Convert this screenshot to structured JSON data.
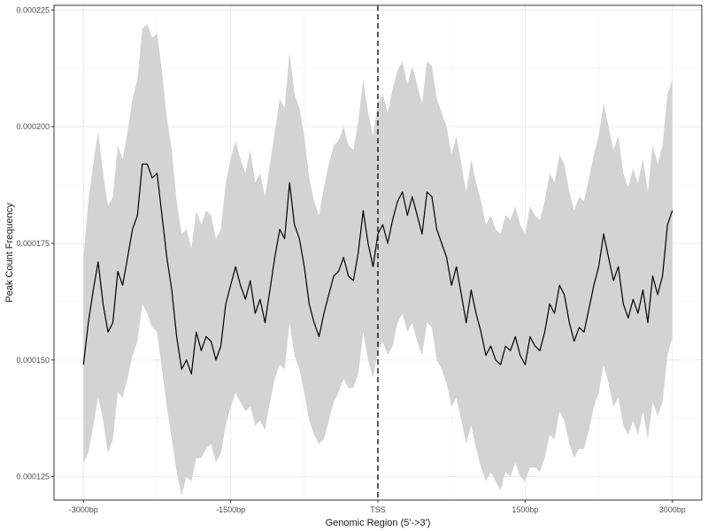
{
  "chart_data": {
    "type": "line",
    "title": "",
    "xlabel": "Genomic Region (5'->3')",
    "ylabel": "Peak Count Frequency",
    "xlim": [
      -3300,
      3300
    ],
    "ylim": [
      0.00012,
      0.000226
    ],
    "x_ticks": [
      {
        "value": -3000,
        "label": "-3000bp"
      },
      {
        "value": -1500,
        "label": "-1500bp"
      },
      {
        "value": 0,
        "label": "TSS"
      },
      {
        "value": 1500,
        "label": "1500bp"
      },
      {
        "value": 3000,
        "label": "3000bp"
      }
    ],
    "y_ticks": [
      {
        "value": 0.000125,
        "label": "0.000125"
      },
      {
        "value": 0.00015,
        "label": "0.000150"
      },
      {
        "value": 0.000175,
        "label": "0.000175"
      },
      {
        "value": 0.0002,
        "label": "0.000200"
      },
      {
        "value": 0.000225,
        "label": "0.000225"
      }
    ],
    "reference_line": {
      "x": 0,
      "style": "dashed"
    },
    "grid": true,
    "colors": {
      "line": "#000000",
      "ribbon": "#d3d3d3",
      "grid": "#ebebeb",
      "border": "#333333"
    },
    "series": [
      {
        "x": [
          -3000,
          -2950,
          -2900,
          -2850,
          -2800,
          -2750,
          -2700,
          -2650,
          -2600,
          -2550,
          -2500,
          -2450,
          -2400,
          -2350,
          -2300,
          -2250,
          -2200,
          -2150,
          -2100,
          -2050,
          -2000,
          -1950,
          -1900,
          -1850,
          -1800,
          -1750,
          -1700,
          -1650,
          -1600,
          -1550,
          -1500,
          -1450,
          -1400,
          -1350,
          -1300,
          -1250,
          -1200,
          -1150,
          -1100,
          -1050,
          -1000,
          -950,
          -900,
          -850,
          -800,
          -750,
          -700,
          -650,
          -600,
          -550,
          -500,
          -450,
          -400,
          -350,
          -300,
          -250,
          -200,
          -150,
          -100,
          -50,
          0,
          50,
          100,
          150,
          200,
          250,
          300,
          350,
          400,
          450,
          500,
          550,
          600,
          650,
          700,
          750,
          800,
          850,
          900,
          950,
          1000,
          1050,
          1100,
          1150,
          1200,
          1250,
          1300,
          1350,
          1400,
          1450,
          1500,
          1550,
          1600,
          1650,
          1700,
          1750,
          1800,
          1850,
          1900,
          1950,
          2000,
          2050,
          2100,
          2150,
          2200,
          2250,
          2300,
          2350,
          2400,
          2450,
          2500,
          2550,
          2600,
          2650,
          2700,
          2750,
          2800,
          2850,
          2900,
          2950,
          3000
        ],
        "y": [
          0.000149,
          0.000158,
          0.000165,
          0.000171,
          0.000162,
          0.000156,
          0.000158,
          0.000169,
          0.000166,
          0.000172,
          0.000178,
          0.000181,
          0.000192,
          0.000192,
          0.000189,
          0.00019,
          0.000181,
          0.000172,
          0.000165,
          0.000155,
          0.000148,
          0.00015,
          0.000147,
          0.000156,
          0.000152,
          0.000155,
          0.000154,
          0.00015,
          0.000153,
          0.000162,
          0.000166,
          0.00017,
          0.000166,
          0.000163,
          0.000167,
          0.00016,
          0.000163,
          0.000158,
          0.000165,
          0.000172,
          0.000178,
          0.000176,
          0.000188,
          0.000179,
          0.000176,
          0.00017,
          0.000162,
          0.000158,
          0.000155,
          0.00016,
          0.000164,
          0.000168,
          0.000169,
          0.000172,
          0.000168,
          0.000167,
          0.000173,
          0.000182,
          0.000175,
          0.00017,
          0.000177,
          0.000179,
          0.000175,
          0.00018,
          0.000184,
          0.000186,
          0.000181,
          0.000185,
          0.000181,
          0.000177,
          0.000186,
          0.000185,
          0.000178,
          0.000175,
          0.000172,
          0.000166,
          0.00017,
          0.000164,
          0.000158,
          0.000165,
          0.00016,
          0.000156,
          0.000151,
          0.000153,
          0.00015,
          0.000149,
          0.000153,
          0.000152,
          0.000155,
          0.000151,
          0.000149,
          0.000155,
          0.000153,
          0.000152,
          0.000156,
          0.000162,
          0.00016,
          0.000166,
          0.000164,
          0.000158,
          0.000154,
          0.000157,
          0.000156,
          0.000161,
          0.000166,
          0.00017,
          0.000177,
          0.000172,
          0.000167,
          0.00017,
          0.000162,
          0.000159,
          0.000163,
          0.00016,
          0.000165,
          0.000158,
          0.000168,
          0.000164,
          0.000168,
          0.000179,
          0.000182
        ],
        "lower": [
          0.000128,
          0.00013,
          0.000136,
          0.000142,
          0.000137,
          0.00013,
          0.000133,
          0.000143,
          0.000142,
          0.000146,
          0.000151,
          0.000154,
          0.000162,
          0.00016,
          0.000157,
          0.000156,
          0.000148,
          0.00014,
          0.000133,
          0.000126,
          0.000121,
          0.000125,
          0.000124,
          0.000129,
          0.000129,
          0.000131,
          0.000132,
          0.000128,
          0.00013,
          0.000136,
          0.00014,
          0.000143,
          0.000141,
          0.000139,
          0.00014,
          0.000136,
          0.000137,
          0.000135,
          0.000141,
          0.000146,
          0.000149,
          0.000148,
          0.000158,
          0.000151,
          0.000148,
          0.000143,
          0.000137,
          0.000134,
          0.000132,
          0.000133,
          0.000137,
          0.000141,
          0.000143,
          0.000146,
          0.000144,
          0.000144,
          0.000147,
          0.000156,
          0.00015,
          0.000146,
          0.000152,
          0.000154,
          0.000151,
          0.000153,
          0.000158,
          0.00016,
          0.000156,
          0.000158,
          0.000154,
          0.000151,
          0.000158,
          0.000157,
          0.00015,
          0.000148,
          0.000145,
          0.00014,
          0.000142,
          0.000137,
          0.000132,
          0.000136,
          0.000131,
          0.000127,
          0.000124,
          0.000126,
          0.000124,
          0.000122,
          0.000126,
          0.000125,
          0.000128,
          0.000125,
          0.000124,
          0.000127,
          0.000127,
          0.000126,
          0.000129,
          0.000134,
          0.000133,
          0.000139,
          0.000137,
          0.000132,
          0.000129,
          0.000131,
          0.000131,
          0.000135,
          0.00014,
          0.000143,
          0.000149,
          0.000145,
          0.00014,
          0.000142,
          0.000136,
          0.000134,
          0.000137,
          0.000134,
          0.000139,
          0.000133,
          0.000141,
          0.000138,
          0.000141,
          0.000151,
          0.000155
        ],
        "upper": [
          0.000172,
          0.000184,
          0.000192,
          0.000199,
          0.00019,
          0.000183,
          0.000185,
          0.000196,
          0.000193,
          0.000199,
          0.000206,
          0.00021,
          0.000221,
          0.000222,
          0.000219,
          0.00022,
          0.000212,
          0.000202,
          0.000195,
          0.000184,
          0.000177,
          0.000178,
          0.000174,
          0.000182,
          0.000179,
          0.000182,
          0.000181,
          0.000176,
          0.000178,
          0.000188,
          0.000193,
          0.000197,
          0.000193,
          0.00019,
          0.000195,
          0.000188,
          0.00019,
          0.000185,
          0.000192,
          0.000199,
          0.000206,
          0.000204,
          0.000216,
          0.000207,
          0.000204,
          0.000198,
          0.000189,
          0.000184,
          0.000181,
          0.000187,
          0.000192,
          0.000196,
          0.000197,
          0.0002,
          0.000196,
          0.000195,
          0.000201,
          0.00021,
          0.000203,
          0.000198,
          0.000205,
          0.000207,
          0.000203,
          0.000208,
          0.000212,
          0.000214,
          0.000209,
          0.000213,
          0.000209,
          0.000205,
          0.000214,
          0.000213,
          0.000206,
          0.000203,
          0.0002,
          0.000194,
          0.000198,
          0.000192,
          0.000186,
          0.000193,
          0.000188,
          0.000184,
          0.000179,
          0.000181,
          0.000178,
          0.000177,
          0.000181,
          0.00018,
          0.000183,
          0.000179,
          0.000177,
          0.000183,
          0.000181,
          0.00018,
          0.000184,
          0.00019,
          0.000188,
          0.000194,
          0.000192,
          0.000186,
          0.000182,
          0.000185,
          0.000184,
          0.000189,
          0.000194,
          0.000198,
          0.000205,
          0.0002,
          0.000195,
          0.000198,
          0.00019,
          0.000187,
          0.000191,
          0.000188,
          0.000193,
          0.000186,
          0.000196,
          0.000192,
          0.000196,
          0.000207,
          0.00021
        ]
      }
    ]
  }
}
